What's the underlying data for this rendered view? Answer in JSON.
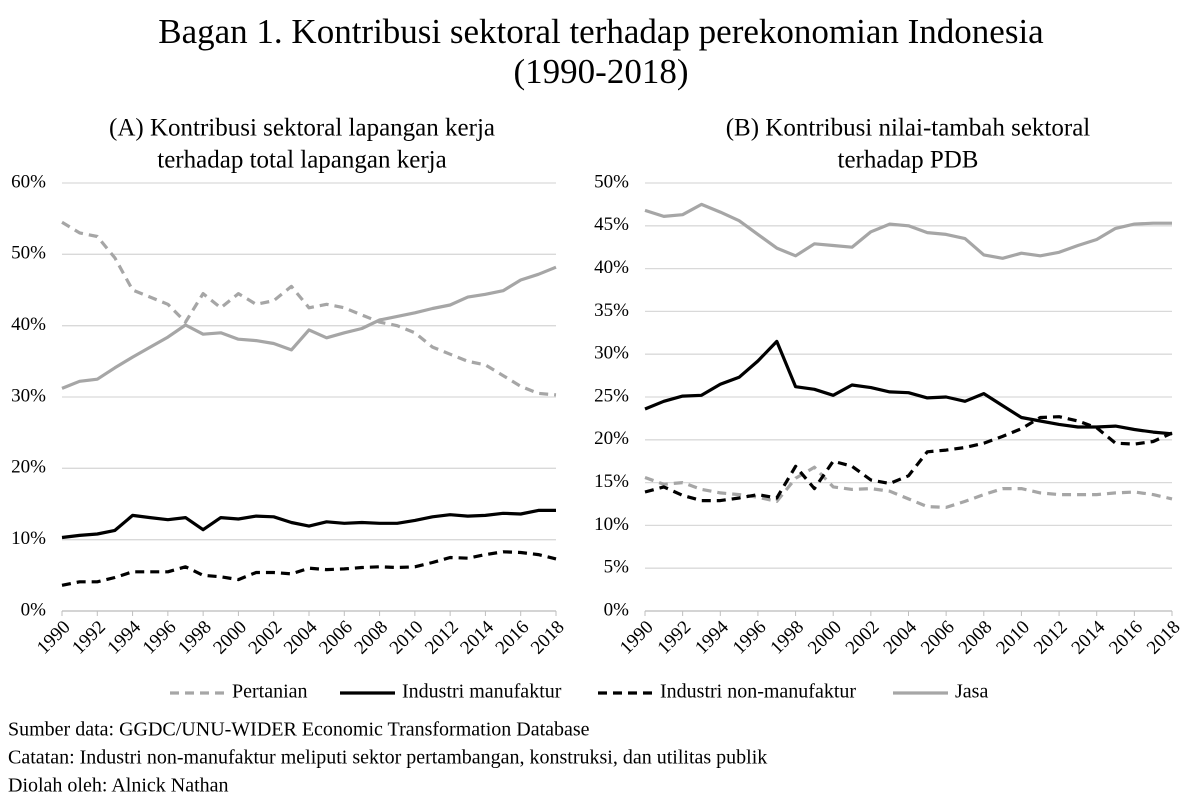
{
  "title": [
    "Bagan 1. Kontribusi sektoral terhadap perekonomian Indonesia",
    "(1990-2018)"
  ],
  "notes": [
    "Sumber data: GGDC/UNU-WIDER Economic Transformation Database",
    "Catatan: Industri non-manufaktur meliputi sektor pertambangan, konstruksi, dan utilitas publik",
    "Diolah oleh: Alnick Nathan"
  ],
  "chart_data": [
    {
      "type": "line",
      "title": [
        "(A) Kontribusi sektoral lapangan kerja",
        "terhadap total lapangan kerja"
      ],
      "x": [
        1990,
        1991,
        1992,
        1993,
        1994,
        1995,
        1996,
        1997,
        1998,
        1999,
        2000,
        2001,
        2002,
        2003,
        2004,
        2005,
        2006,
        2007,
        2008,
        2009,
        2010,
        2011,
        2012,
        2013,
        2014,
        2015,
        2016,
        2017,
        2018
      ],
      "xlim": [
        1990,
        2018
      ],
      "xticks": [
        1990,
        1992,
        1994,
        1996,
        1998,
        2000,
        2002,
        2004,
        2006,
        2008,
        2010,
        2012,
        2014,
        2016,
        2018
      ],
      "ylim": [
        0,
        60
      ],
      "yticks": [
        {
          "value": 0,
          "label": "0%"
        },
        {
          "value": 10,
          "label": "10%"
        },
        {
          "value": 20,
          "label": "20%"
        },
        {
          "value": 30,
          "label": "30%"
        },
        {
          "value": 40,
          "label": "40%"
        },
        {
          "value": 50,
          "label": "50%"
        },
        {
          "value": 60,
          "label": "60%"
        }
      ],
      "grid": true,
      "legend": "bottom",
      "series": [
        {
          "name": "Pertanian",
          "color": "#a6a6a6",
          "line_style": "dashed",
          "values": [
            54.5,
            53,
            52.5,
            49.5,
            45,
            44,
            43,
            40.5,
            44.5,
            42.5,
            44.5,
            43,
            43.5,
            45.5,
            42.5,
            43,
            42.5,
            41.5,
            40.5,
            40,
            39,
            37,
            36,
            35,
            34.5,
            33,
            31.5,
            30.5,
            30.3
          ]
        },
        {
          "name": "Industri manufaktur",
          "color": "#000000",
          "line_style": "solid",
          "values": [
            10.3,
            10.6,
            10.8,
            11.3,
            13.4,
            13.1,
            12.8,
            13.1,
            11.4,
            13.1,
            12.9,
            13.3,
            13.2,
            12.4,
            11.9,
            12.5,
            12.3,
            12.4,
            12.3,
            12.3,
            12.7,
            13.2,
            13.5,
            13.3,
            13.4,
            13.7,
            13.6,
            14.1,
            14.1
          ]
        },
        {
          "name": "Industri non-manufaktur",
          "color": "#000000",
          "line_style": "dashed",
          "values": [
            3.6,
            4.1,
            4.1,
            4.7,
            5.5,
            5.5,
            5.5,
            6.2,
            5.0,
            4.8,
            4.4,
            5.4,
            5.4,
            5.2,
            6.0,
            5.8,
            5.9,
            6.1,
            6.2,
            6.1,
            6.2,
            6.8,
            7.5,
            7.4,
            7.9,
            8.3,
            8.2,
            7.9,
            7.3
          ]
        },
        {
          "name": "Jasa",
          "color": "#a6a6a6",
          "line_style": "solid",
          "values": [
            31.2,
            32.2,
            32.5,
            34.1,
            35.6,
            37.0,
            38.4,
            40.1,
            38.8,
            39.0,
            38.1,
            37.9,
            37.5,
            36.6,
            39.4,
            38.3,
            39.0,
            39.6,
            40.8,
            41.3,
            41.8,
            42.4,
            42.9,
            44.0,
            44.4,
            44.9,
            46.4,
            47.2,
            48.2
          ]
        }
      ]
    },
    {
      "type": "line",
      "title": [
        "(B) Kontribusi nilai-tambah sektoral",
        "terhadap PDB"
      ],
      "x": [
        1990,
        1991,
        1992,
        1993,
        1994,
        1995,
        1996,
        1997,
        1998,
        1999,
        2000,
        2001,
        2002,
        2003,
        2004,
        2005,
        2006,
        2007,
        2008,
        2009,
        2010,
        2011,
        2012,
        2013,
        2014,
        2015,
        2016,
        2017,
        2018
      ],
      "xlim": [
        1990,
        2018
      ],
      "xticks": [
        1990,
        1992,
        1994,
        1996,
        1998,
        2000,
        2002,
        2004,
        2006,
        2008,
        2010,
        2012,
        2014,
        2016,
        2018
      ],
      "ylim": [
        0,
        50
      ],
      "yticks": [
        {
          "value": 0,
          "label": "0%"
        },
        {
          "value": 5,
          "label": "5%"
        },
        {
          "value": 10,
          "label": "10%"
        },
        {
          "value": 15,
          "label": "15%"
        },
        {
          "value": 20,
          "label": "20%"
        },
        {
          "value": 25,
          "label": "25%"
        },
        {
          "value": 30,
          "label": "30%"
        },
        {
          "value": 35,
          "label": "35%"
        },
        {
          "value": 40,
          "label": "40%"
        },
        {
          "value": 45,
          "label": "45%"
        },
        {
          "value": 50,
          "label": "50%"
        }
      ],
      "grid": true,
      "series": [
        {
          "name": "Pertanian",
          "color": "#a6a6a6",
          "line_style": "dashed",
          "values": [
            15.6,
            14.8,
            15.0,
            14.2,
            13.8,
            13.6,
            13.3,
            12.8,
            15.5,
            16.8,
            14.5,
            14.2,
            14.3,
            14.0,
            13.1,
            12.2,
            12.1,
            12.8,
            13.6,
            14.3,
            14.3,
            13.8,
            13.6,
            13.6,
            13.6,
            13.8,
            13.9,
            13.6,
            13.1
          ]
        },
        {
          "name": "Industri manufaktur",
          "color": "#000000",
          "line_style": "solid",
          "values": [
            23.6,
            24.5,
            25.1,
            25.2,
            26.5,
            27.3,
            29.2,
            31.5,
            26.2,
            25.9,
            25.2,
            26.4,
            26.1,
            25.6,
            25.5,
            24.9,
            25.0,
            24.5,
            25.4,
            24.0,
            22.6,
            22.2,
            21.8,
            21.5,
            21.5,
            21.6,
            21.2,
            20.9,
            20.7
          ]
        },
        {
          "name": "Industri non-manufaktur",
          "color": "#000000",
          "line_style": "dashed",
          "values": [
            13.9,
            14.5,
            13.5,
            12.9,
            12.9,
            13.2,
            13.6,
            13.2,
            16.9,
            14.3,
            17.5,
            16.9,
            15.3,
            14.9,
            15.8,
            18.6,
            18.8,
            19.1,
            19.6,
            20.4,
            21.3,
            22.6,
            22.7,
            22.2,
            21.4,
            19.6,
            19.5,
            19.8,
            20.8
          ]
        },
        {
          "name": "Jasa",
          "color": "#a6a6a6",
          "line_style": "solid",
          "values": [
            46.8,
            46.1,
            46.3,
            47.5,
            46.6,
            45.6,
            44.0,
            42.4,
            41.5,
            42.9,
            42.7,
            42.5,
            44.3,
            45.2,
            45.0,
            44.2,
            44.0,
            43.5,
            41.6,
            41.2,
            41.8,
            41.5,
            41.9,
            42.7,
            43.4,
            44.7,
            45.2,
            45.3,
            45.3
          ]
        }
      ]
    }
  ]
}
